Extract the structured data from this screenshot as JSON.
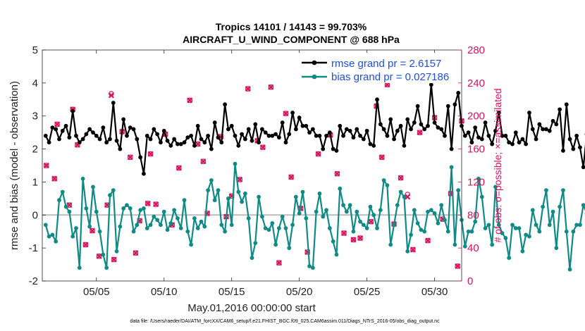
{
  "chart_data": {
    "type": "line",
    "title_line1": "Tropics 14101 / 14143 = 99.703%",
    "title_line2": "AIRCRAFT_U_WIND_COMPONENT @ 688 hPa",
    "xlabel": "May.01,2016 00:00:00 start",
    "ylabel_left": "rmse and bias (model - observation)",
    "ylabel_right": "# of obs: o=possible; ×=assimilated",
    "footnote": "data file: /Users/raeder/DAI/ATM_forcXX/CAM6_setup/f.e21.FHIST_BGC.f09_025.CAM6assim.011/Diags_NTrS_2016-05/obs_diag_output.nc",
    "xlim": [
      1,
      32
    ],
    "ylim_left": [
      -2,
      5
    ],
    "ylim_right": [
      0,
      280
    ],
    "x_ticks": [
      5,
      10,
      15,
      20,
      25,
      30
    ],
    "x_tick_labels": [
      "05/05",
      "05/10",
      "05/15",
      "05/20",
      "05/25",
      "05/30"
    ],
    "y_left_ticks": [
      -2,
      -1,
      0,
      1,
      2,
      3,
      4,
      5
    ],
    "y_left_tick_labels": [
      "-2",
      "-1",
      "0",
      "1",
      "2",
      "3",
      "4",
      "5"
    ],
    "y_right_ticks": [
      0,
      40,
      80,
      120,
      160,
      200,
      240,
      280
    ],
    "y_right_tick_labels": [
      "0",
      "40",
      "80",
      "120",
      "160",
      "200",
      "240",
      "280"
    ],
    "zero_line": 0,
    "x_start": 1.25,
    "x_step": 0.25,
    "series": [
      {
        "name": "rmse grand pr = 2.6157",
        "color": "#000000",
        "axis": "left",
        "values": [
          2.4,
          2.2,
          2.65,
          2.6,
          2.3,
          2.55,
          2.7,
          2.35,
          3.15,
          2.4,
          2.2,
          2.3,
          2.45,
          2.6,
          2.5,
          2.4,
          2.3,
          2.65,
          2.2,
          2.3,
          3.4,
          2.25,
          2.0,
          2.9,
          2.4,
          2.65,
          2.6,
          2.3,
          1.75,
          1.25,
          2.4,
          2.3,
          2.6,
          2.45,
          2.2,
          2.55,
          2.25,
          2.1,
          2.3,
          2.15,
          2.15,
          2.2,
          2.35,
          2.4,
          2.1,
          2.7,
          2.3,
          2.2,
          2.4,
          2.0,
          2.8,
          2.35,
          2.2,
          3.35,
          2.6,
          2.7,
          2.4,
          2.1,
          2.45,
          2.3,
          2.6,
          2.25,
          2.75,
          2.2,
          2.6,
          2.5,
          2.4,
          2.4,
          2.45,
          2.35,
          2.8,
          2.2,
          2.45,
          3.1,
          2.6,
          2.95,
          2.7,
          2.7,
          2.5,
          2.6,
          2.4,
          2.4,
          2.0,
          2.4,
          2.5,
          2.0,
          1.95,
          2.7,
          2.4,
          2.6,
          2.55,
          2.35,
          2.6,
          2.4,
          2.3,
          2.55,
          2.15,
          2.1,
          3.5,
          2.75,
          2.6,
          2.4,
          2.9,
          2.3,
          2.55,
          2.7,
          2.1,
          2.9,
          2.6,
          2.8,
          3.3,
          2.75,
          2.6,
          2.7,
          3.95,
          2.8,
          2.65,
          2.6,
          2.4,
          3.3,
          2.0,
          3.35,
          3.7,
          2.7,
          2.4,
          2.5,
          2.2,
          2.65,
          2.35,
          2.3,
          2.8,
          2.4,
          2.15,
          2.55,
          3.1,
          2.4,
          2.4,
          2.2,
          2.15,
          2.5,
          2.2,
          2.3,
          2.15,
          3.1,
          2.6,
          2.3,
          2.75,
          2.6,
          2.6,
          2.55,
          2.85,
          2.75,
          3.2,
          1.95,
          3.35,
          2.3,
          2.0,
          2.4,
          2.05,
          1.45,
          2.45,
          2.45
        ]
      },
      {
        "name": "bias grand pr = 0.027186",
        "color": "#0f8a85",
        "axis": "left",
        "values": [
          -0.3,
          -0.65,
          -0.6,
          -0.8,
          0.45,
          0.7,
          0.25,
          0.1,
          -0.65,
          -0.4,
          -1.6,
          1.1,
          0.2,
          -0.35,
          0.85,
          0.1,
          -0.5,
          -1.2,
          -1.6,
          0.6,
          0.75,
          -1.1,
          -0.35,
          0.2,
          0.3,
          0.2,
          -0.5,
          -0.3,
          0.15,
          0.2,
          -0.4,
          -0.3,
          -0.05,
          -0.15,
          -0.3,
          0.1,
          -0.45,
          -0.25,
          0.15,
          -0.1,
          -0.4,
          0.45,
          -0.5,
          -0.9,
          -0.1,
          -0.4,
          -0.2,
          -0.35,
          0.75,
          1.05,
          0.45,
          0.75,
          -0.3,
          -0.5,
          0.5,
          -0.3,
          1.55,
          0.7,
          0.4,
          0.65,
          -0.1,
          -1.3,
          -0.85,
          0.55,
          -0.05,
          -0.4,
          -0.45,
          -0.25,
          -0.9,
          -0.4,
          -0.05,
          -0.4,
          -1.0,
          -0.3,
          0.55,
          0.05,
          0.7,
          -0.1,
          -1.55,
          -1.6,
          0.1,
          0.65,
          -0.05,
          0.15,
          -0.4,
          -0.8,
          -1.2,
          0.8,
          0.3,
          0.1,
          0.3,
          -0.5,
          0.1,
          -0.2,
          -0.3,
          -0.4,
          0.25,
          0.0,
          -0.4,
          0.15,
          1.05,
          0.9,
          -0.9,
          -0.3,
          0.3,
          0.7,
          0.55,
          -1.1,
          -0.6,
          0.15,
          -0.25,
          -0.45,
          -0.5,
          0.1,
          0.15,
          0.05,
          -0.25,
          0.3,
          -0.15,
          -0.5,
          1.45,
          -0.9,
          0.75,
          -0.15,
          -0.95,
          -0.5,
          -0.5,
          -0.2,
          1.1,
          0.55,
          -0.4,
          -0.3,
          -0.9,
          0.85,
          -0.3,
          -0.55,
          -0.7,
          -1.3,
          -0.3,
          -0.4,
          -0.4,
          -1.1,
          -0.6,
          -0.65,
          0.15,
          -0.3,
          -0.5,
          0.25,
          0.75,
          -0.3,
          0.1,
          -1.0,
          0.25,
          0.75,
          -0.5,
          -1.65,
          -0.5,
          -0.3,
          -0.3,
          0.3,
          0.05
        ]
      }
    ],
    "obs_possible": [
      [
        1.3,
        140
      ],
      [
        1.9,
        124
      ],
      [
        2.1,
        190
      ],
      [
        3.0,
        92
      ],
      [
        3.25,
        208
      ],
      [
        3.6,
        165
      ],
      [
        4.2,
        44
      ],
      [
        4.7,
        61
      ],
      [
        5.2,
        30
      ],
      [
        5.8,
        92
      ],
      [
        6.1,
        227
      ],
      [
        6.3,
        26
      ],
      [
        6.9,
        181
      ],
      [
        7.5,
        150
      ],
      [
        7.9,
        34
      ],
      [
        8.2,
        73
      ],
      [
        8.8,
        94
      ],
      [
        9.0,
        154
      ],
      [
        9.4,
        93
      ],
      [
        10.1,
        178
      ],
      [
        10.6,
        68
      ],
      [
        11.1,
        137
      ],
      [
        11.9,
        219
      ],
      [
        12.5,
        166
      ],
      [
        12.9,
        145
      ],
      [
        13.2,
        82
      ],
      [
        14.2,
        175
      ],
      [
        14.6,
        78
      ],
      [
        15.0,
        103
      ],
      [
        15.6,
        123
      ],
      [
        16.2,
        233
      ],
      [
        16.9,
        170
      ],
      [
        17.3,
        162
      ],
      [
        17.9,
        235
      ],
      [
        18.5,
        22
      ],
      [
        19.0,
        203
      ],
      [
        19.4,
        126
      ],
      [
        20.1,
        88
      ],
      [
        20.6,
        35
      ],
      [
        21.4,
        154
      ],
      [
        22.3,
        177
      ],
      [
        22.8,
        130
      ],
      [
        23.3,
        58
      ],
      [
        24.0,
        50
      ],
      [
        24.5,
        52
      ],
      [
        25.3,
        72
      ],
      [
        25.7,
        212
      ],
      [
        26.1,
        150
      ],
      [
        26.5,
        238
      ],
      [
        27.0,
        69
      ],
      [
        27.5,
        125
      ],
      [
        28.0,
        105
      ],
      [
        28.4,
        38
      ],
      [
        28.9,
        180
      ],
      [
        29.5,
        49
      ],
      [
        30.0,
        198
      ],
      [
        30.6,
        75
      ],
      [
        31.2,
        106
      ],
      [
        31.7,
        18
      ],
      [
        32.0,
        194
      ]
    ],
    "obs_assimilated": [
      [
        1.3,
        140
      ],
      [
        1.9,
        124
      ],
      [
        2.1,
        190
      ],
      [
        3.0,
        92
      ],
      [
        3.25,
        208
      ],
      [
        3.6,
        165
      ],
      [
        4.2,
        44
      ],
      [
        4.7,
        61
      ],
      [
        5.2,
        30
      ],
      [
        5.8,
        92
      ],
      [
        6.1,
        225
      ],
      [
        6.3,
        26
      ],
      [
        6.9,
        181
      ],
      [
        7.5,
        150
      ],
      [
        7.9,
        34
      ],
      [
        8.2,
        73
      ],
      [
        8.8,
        94
      ],
      [
        9.0,
        154
      ],
      [
        9.4,
        93
      ],
      [
        10.1,
        178
      ],
      [
        10.6,
        68
      ],
      [
        11.1,
        137
      ],
      [
        11.9,
        219
      ],
      [
        12.5,
        166
      ],
      [
        12.9,
        145
      ],
      [
        13.2,
        82
      ],
      [
        14.2,
        175
      ],
      [
        14.6,
        78
      ],
      [
        15.0,
        103
      ],
      [
        15.6,
        123
      ],
      [
        16.2,
        233
      ],
      [
        16.9,
        170
      ],
      [
        17.3,
        162
      ],
      [
        17.9,
        235
      ],
      [
        18.5,
        22
      ],
      [
        19.0,
        203
      ],
      [
        19.4,
        126
      ],
      [
        20.1,
        88
      ],
      [
        20.6,
        35
      ],
      [
        21.4,
        154
      ],
      [
        22.3,
        177
      ],
      [
        22.8,
        130
      ],
      [
        23.3,
        58
      ],
      [
        24.0,
        50
      ],
      [
        24.5,
        52
      ],
      [
        25.3,
        72
      ],
      [
        25.7,
        212
      ],
      [
        26.1,
        150
      ],
      [
        26.5,
        238
      ],
      [
        27.0,
        69
      ],
      [
        27.5,
        125
      ],
      [
        28.0,
        102
      ],
      [
        28.4,
        38
      ],
      [
        28.9,
        180
      ],
      [
        29.5,
        49
      ],
      [
        30.0,
        198
      ],
      [
        30.6,
        75
      ],
      [
        31.2,
        106
      ],
      [
        31.7,
        18
      ],
      [
        32.0,
        194
      ]
    ],
    "obs_color": "#d4145a",
    "zero_line_color": "#bdbdbd",
    "legend_location": "top-right"
  }
}
